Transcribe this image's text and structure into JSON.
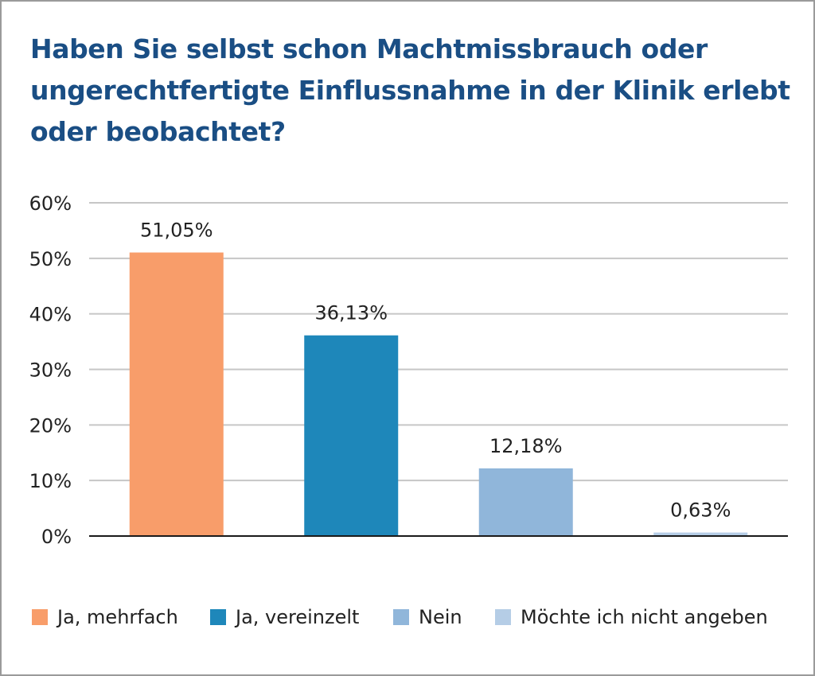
{
  "chart_data": {
    "type": "bar",
    "title_lines": [
      "Haben Sie selbst schon Machtmissbrauch oder",
      "ungerechtfertigte Einflussnahme in der Klinik erlebt",
      "oder beobachtet?"
    ],
    "categories": [
      "Ja, mehrfach",
      "Ja, vereinzelt",
      "Nein",
      "Möchte ich nicht angeben"
    ],
    "values": [
      51.05,
      36.13,
      12.18,
      0.63
    ],
    "value_labels": [
      "51,05%",
      "36,13%",
      "12,18%",
      "0,63%"
    ],
    "colors": [
      "#f89d6a",
      "#1e87ba",
      "#90b6da",
      "#b5cde6"
    ],
    "ylim": [
      0,
      60
    ],
    "yticks": [
      0,
      10,
      20,
      30,
      40,
      50,
      60
    ],
    "ytick_labels": [
      "0%",
      "10%",
      "20%",
      "30%",
      "40%",
      "50%",
      "60%"
    ],
    "xlabel": "",
    "ylabel": "",
    "grid": true,
    "legend_position": "bottom"
  }
}
